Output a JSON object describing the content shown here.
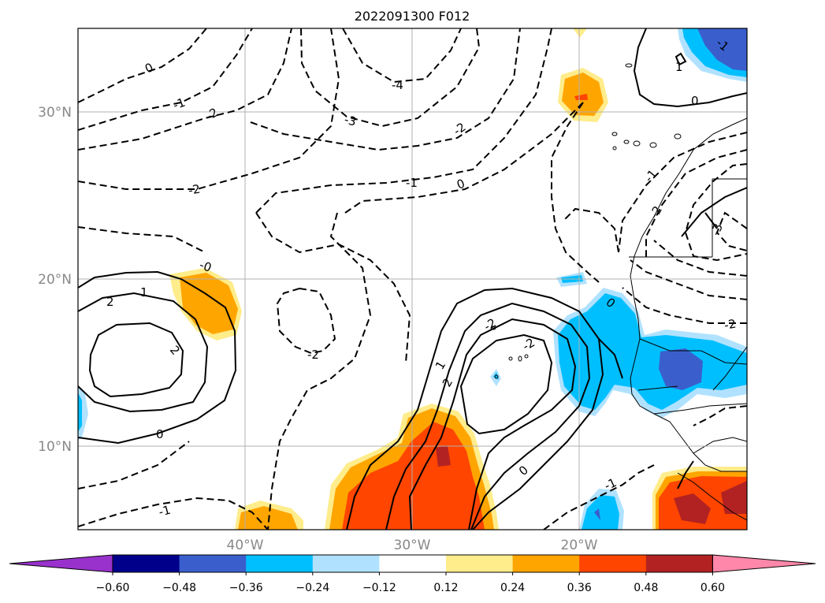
{
  "title": "2022091300 F012",
  "lat_labels": [
    "30°N",
    "20°N",
    "10°N"
  ],
  "lon_labels": [
    "40°W",
    "30°W",
    "20°W"
  ],
  "colorbar": {
    "tick_labels": [
      "−0.60",
      "−0.48",
      "−0.36",
      "−0.24",
      "−0.12",
      "0.12",
      "0.24",
      "0.36",
      "0.48",
      "0.60"
    ],
    "colors": [
      "#9932cc",
      "#00008b",
      "#3a5fcd",
      "#00bfff",
      "#b0e2ff",
      "#ffffff",
      "#ffec8b",
      "#ffa500",
      "#ff4500",
      "#b22222",
      "#ff88aa"
    ]
  },
  "contour_labels": [
    {
      "text": "0"
    },
    {
      "text": "-1"
    },
    {
      "text": "-2"
    },
    {
      "text": "-3"
    },
    {
      "text": "-4"
    },
    {
      "text": "-2"
    },
    {
      "text": "-1"
    },
    {
      "text": "0"
    },
    {
      "text": "-2"
    },
    {
      "text": "-0"
    },
    {
      "text": "1"
    },
    {
      "text": "2"
    },
    {
      "text": "2"
    },
    {
      "text": "-2"
    },
    {
      "text": "0"
    },
    {
      "text": "-1"
    },
    {
      "text": "1"
    },
    {
      "text": "2"
    },
    {
      "text": "-2"
    },
    {
      "text": "-2"
    },
    {
      "text": "0"
    },
    {
      "text": "1"
    },
    {
      "text": "0"
    },
    {
      "text": "-1"
    },
    {
      "text": "-2"
    },
    {
      "text": "-3"
    },
    {
      "text": "-2"
    },
    {
      "text": "-1"
    },
    {
      "text": "0"
    },
    {
      "text": "-1"
    }
  ]
}
